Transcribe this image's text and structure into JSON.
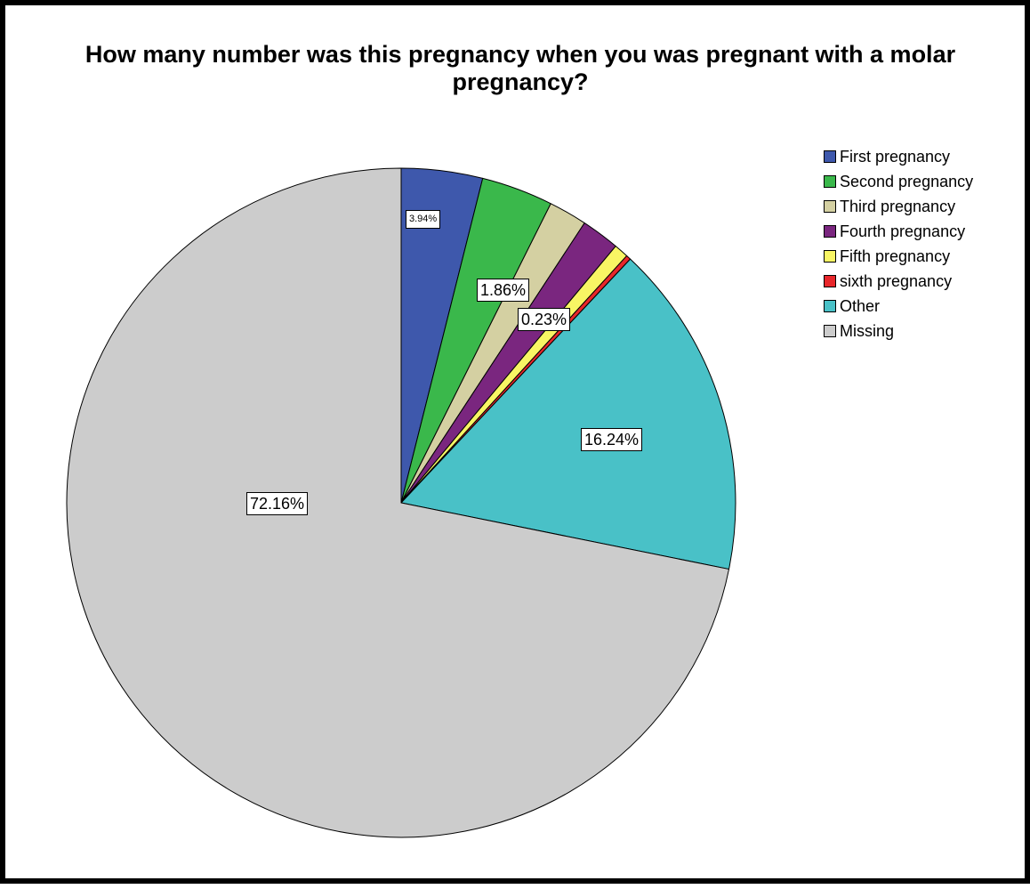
{
  "chart_data": {
    "type": "pie",
    "title": "How many number was this pregnancy when you was pregnant with a molar\npregnancy?",
    "legend_position": "right",
    "slices": [
      {
        "label": "First pregnancy",
        "value": 3.94,
        "color": "#3e58ac",
        "data_label": "3.94%"
      },
      {
        "label": "Second pregnancy",
        "value": 3.48,
        "color": "#3ab84b",
        "data_label": ""
      },
      {
        "label": "Third pregnancy",
        "value": 1.86,
        "color": "#d4d0a2",
        "data_label": "1.86%"
      },
      {
        "label": "Fourth pregnancy",
        "value": 1.86,
        "color": "#7a267f",
        "data_label": ""
      },
      {
        "label": "Fifth pregnancy",
        "value": 0.7,
        "color": "#f8f564",
        "data_label": ""
      },
      {
        "label": "sixth pregnancy",
        "value": 0.23,
        "color": "#e8272b",
        "data_label": "0.23%"
      },
      {
        "label": "Other",
        "value": 16.24,
        "color": "#49c1c7",
        "data_label": "16.24%"
      },
      {
        "label": "Missing",
        "value": 72.16,
        "color": "#cccccc",
        "data_label": "72.16%"
      }
    ]
  }
}
